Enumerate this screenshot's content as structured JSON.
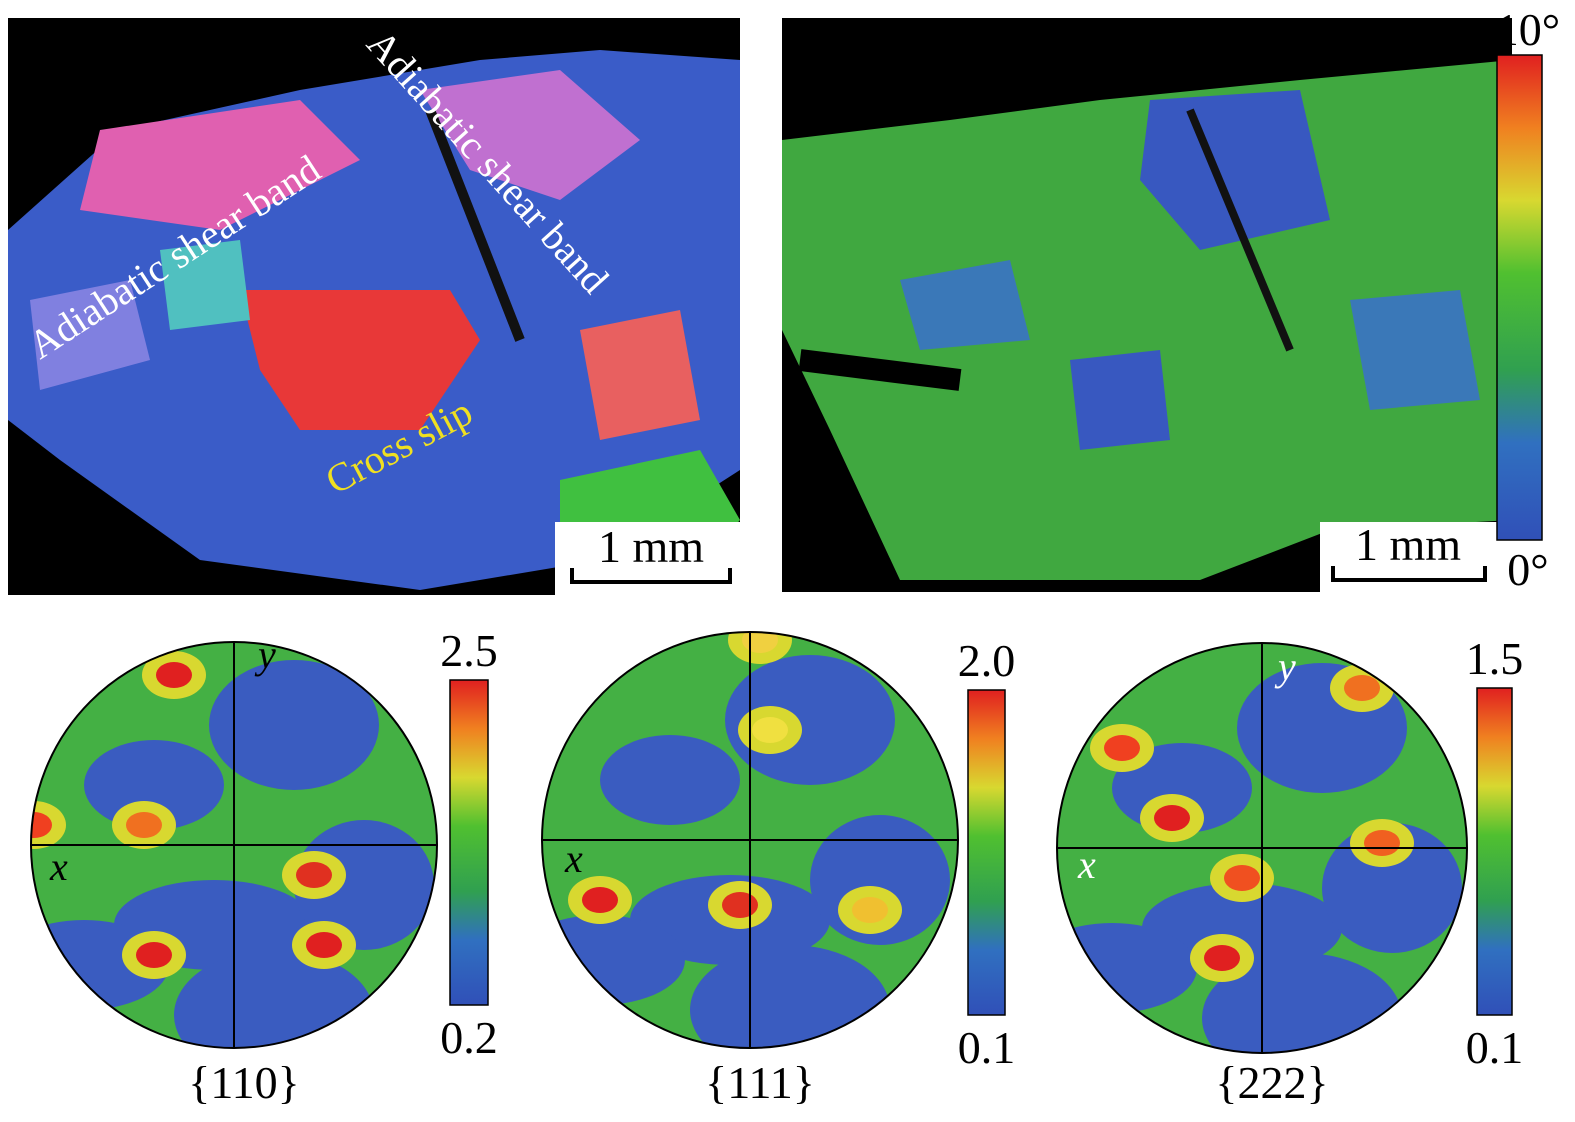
{
  "orientation_map": {
    "annotations": [
      "Adiabatic shear band",
      "Adiabatic shear band",
      "Cross slip"
    ],
    "scale_bar": "1 mm"
  },
  "misorientation_map": {
    "scale_bar": "1 mm",
    "colorbar": {
      "max": "10°",
      "min": "0°"
    }
  },
  "pole_figures": [
    {
      "label": "{110}",
      "axes": [
        "x",
        "y"
      ],
      "colorbar": {
        "max": "2.5",
        "min": "0.2"
      }
    },
    {
      "label": "{111}",
      "axes": [
        "x"
      ],
      "colorbar": {
        "max": "2.0",
        "min": "0.1"
      }
    },
    {
      "label": "{222}",
      "axes": [
        "x",
        "y"
      ],
      "colorbar": {
        "max": "1.5",
        "min": "0.1"
      }
    }
  ]
}
